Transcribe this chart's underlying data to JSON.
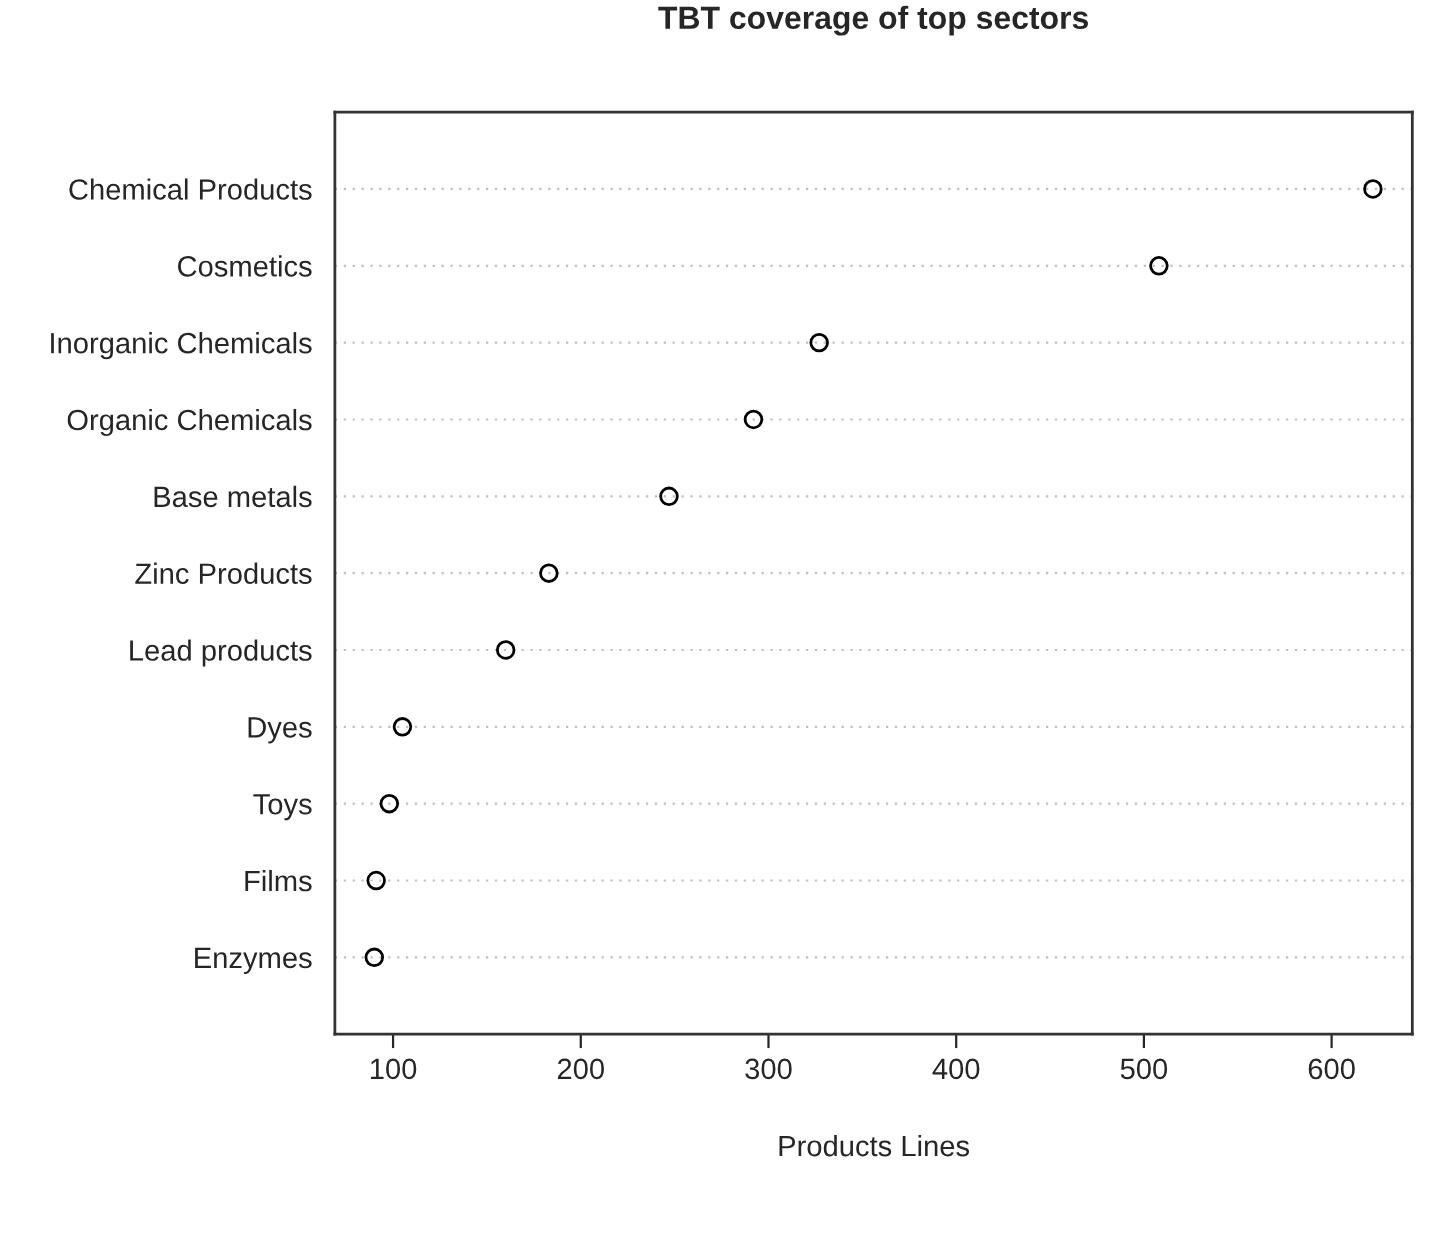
{
  "chart_data": {
    "type": "scatter",
    "title": "TBT coverage of top sectors",
    "xlabel": "Products Lines",
    "orientation": "horizontal",
    "categories": [
      "Chemical Products",
      "Cosmetics",
      "Inorganic Chemicals",
      "Organic Chemicals",
      "Base metals",
      "Zinc Products",
      "Lead products",
      "Dyes",
      "Toys",
      "Films",
      "Enzymes"
    ],
    "values": [
      622,
      508,
      327,
      292,
      247,
      183,
      160,
      105,
      98,
      91,
      90
    ],
    "color": "#000000",
    "marker": "circle",
    "grid": "y",
    "xlim": [
      69,
      643
    ],
    "xticks": [
      100,
      200,
      300,
      400,
      500,
      600
    ]
  }
}
